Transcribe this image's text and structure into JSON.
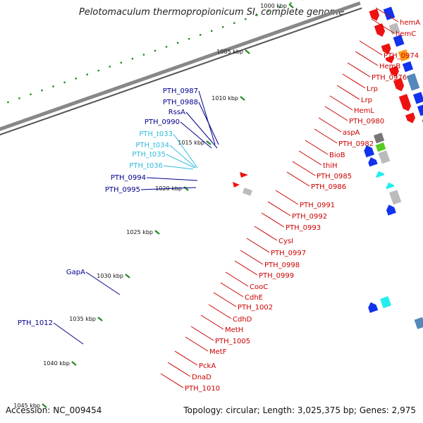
{
  "title": "Pelotomaculum thermopropionicum SI, complete genome",
  "footer": {
    "accession": "Accession: NC_009454",
    "topology": "Topology: circular; Length: 3,025,375 bp; Genes: 2,975"
  },
  "colors": {
    "forward_label": "#cc0000",
    "reverse_label": "#00008b",
    "rna_label": "#33bbdd",
    "backbone": "#888888",
    "tick_dots": "#228b22"
  },
  "ruler": [
    "1000 kbp",
    "1005 kbp",
    "1010 kbp",
    "1015 kbp",
    "1020 kbp",
    "1025 kbp",
    "1030 kbp",
    "1035 kbp",
    "1040 kbp",
    "1045 kbp"
  ],
  "right_labels": [
    "hemA",
    "hemC",
    "PTH_0974",
    "HemB",
    "PTH_0976",
    "Lrp",
    "Lrp",
    "HemL",
    "PTH_0980",
    "aspA",
    "PTH_0982",
    "BioB",
    "thiH",
    "PTH_0985",
    "PTH_0986",
    "PTH_0991",
    "PTH_0992",
    "PTH_0993",
    "CysI",
    "PTH_0997",
    "PTH_0998",
    "PTH_0999",
    "CooC",
    "CdhE",
    "PTH_1002",
    "CdhD",
    "MetH",
    "PTH_1005",
    "MetF",
    "PckA",
    "DnaD",
    "PTH_1010"
  ],
  "left_labels": [
    {
      "text": "PTH_0987",
      "kind": "reverse"
    },
    {
      "text": "PTH_0988",
      "kind": "reverse"
    },
    {
      "text": "RssA",
      "kind": "reverse"
    },
    {
      "text": "PTH_0990",
      "kind": "reverse"
    },
    {
      "text": "PTH_t033",
      "kind": "rna"
    },
    {
      "text": "PTH_t034",
      "kind": "rna"
    },
    {
      "text": "PTH_t035",
      "kind": "rna"
    },
    {
      "text": "PTH_t036",
      "kind": "rna"
    },
    {
      "text": "PTH_0994",
      "kind": "reverse"
    },
    {
      "text": "PTH_0995",
      "kind": "reverse"
    },
    {
      "text": "GapA",
      "kind": "reverse"
    },
    {
      "text": "PTH_1012",
      "kind": "reverse"
    }
  ]
}
